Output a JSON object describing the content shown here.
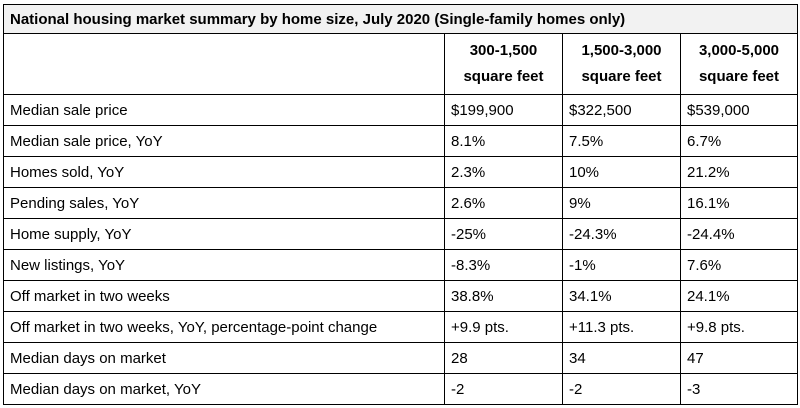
{
  "title": "National housing market summary by home size, July 2020 (Single-family homes only)",
  "columns": [
    {
      "line1": "300-1,500",
      "line2": "square feet"
    },
    {
      "line1": "1,500-3,000",
      "line2": "square feet"
    },
    {
      "line1": "3,000-5,000",
      "line2": "square feet"
    }
  ],
  "rows": [
    {
      "label": "Median sale price",
      "values": [
        "$199,900",
        "$322,500",
        "$539,000"
      ]
    },
    {
      "label": "Median sale price, YoY",
      "values": [
        "8.1%",
        "7.5%",
        "6.7%"
      ]
    },
    {
      "label": "Homes sold, YoY",
      "values": [
        "2.3%",
        "10%",
        "21.2%"
      ]
    },
    {
      "label": "Pending sales, YoY",
      "values": [
        "2.6%",
        "9%",
        "16.1%"
      ]
    },
    {
      "label": "Home supply, YoY",
      "values": [
        "-25%",
        "-24.3%",
        "-24.4%"
      ]
    },
    {
      "label": "New listings, YoY",
      "values": [
        "-8.3%",
        "-1%",
        "7.6%"
      ]
    },
    {
      "label": "Off market in two weeks",
      "values": [
        "38.8%",
        "34.1%",
        "24.1%"
      ]
    },
    {
      "label": "Off market in two weeks, YoY, percentage-point change",
      "values": [
        "+9.9 pts.",
        "+11.3 pts.",
        "+9.8 pts."
      ]
    },
    {
      "label": "Median days on market",
      "values": [
        "28",
        "34",
        "47"
      ]
    },
    {
      "label": "Median days on market, YoY",
      "values": [
        "-2",
        "-2",
        "-3"
      ]
    }
  ]
}
